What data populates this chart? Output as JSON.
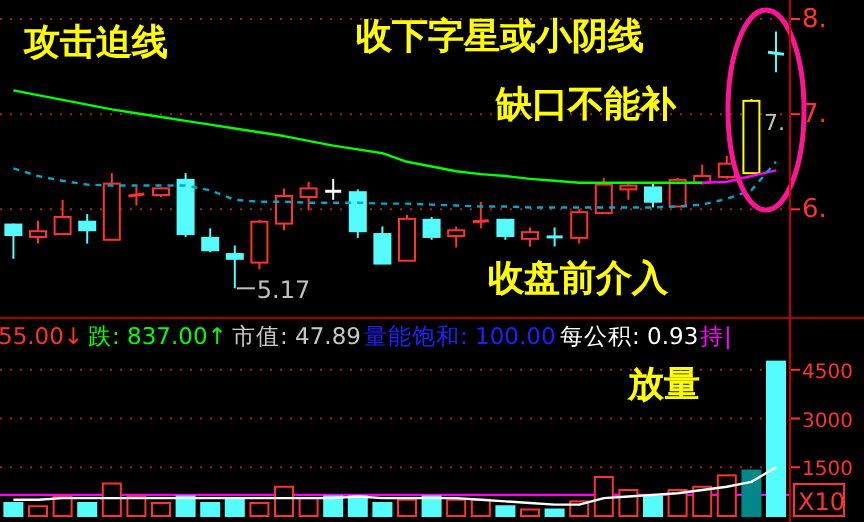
{
  "chart_data": [
    {
      "type": "candlestick",
      "categories": [
        null,
        null,
        null,
        null,
        null,
        null,
        null,
        null,
        null,
        null,
        null,
        null,
        null,
        null,
        null,
        null,
        null,
        null,
        null,
        null,
        null,
        null,
        null,
        null,
        null,
        null,
        null,
        null,
        null,
        null,
        null,
        null
      ],
      "ohlc": [
        [
          5.84,
          5.85,
          5.48,
          5.73
        ],
        [
          5.71,
          5.88,
          5.64,
          5.77
        ],
        [
          5.74,
          6.1,
          5.74,
          5.92
        ],
        [
          5.87,
          5.95,
          5.64,
          5.78
        ],
        [
          5.68,
          6.38,
          5.68,
          6.27
        ],
        [
          6.14,
          6.24,
          6.04,
          6.16
        ],
        [
          6.15,
          6.23,
          6.13,
          6.22
        ],
        [
          6.31,
          6.38,
          5.71,
          5.74
        ],
        [
          5.7,
          5.8,
          5.55,
          5.57
        ],
        [
          5.53,
          5.62,
          5.17,
          5.48
        ],
        [
          5.44,
          5.89,
          5.37,
          5.87
        ],
        [
          5.85,
          6.22,
          5.78,
          6.14
        ],
        [
          6.13,
          6.29,
          5.99,
          6.22
        ],
        [
          6.19,
          6.32,
          6.1,
          6.19
        ],
        [
          6.18,
          6.21,
          5.7,
          5.77
        ],
        [
          5.74,
          5.82,
          5.43,
          5.43
        ],
        [
          5.46,
          5.94,
          5.46,
          5.9
        ],
        [
          5.89,
          5.92,
          5.68,
          5.71
        ],
        [
          5.72,
          5.82,
          5.6,
          5.78
        ],
        [
          5.87,
          6.08,
          5.8,
          5.88
        ],
        [
          5.89,
          5.9,
          5.68,
          5.72
        ],
        [
          5.69,
          5.81,
          5.61,
          5.76
        ],
        [
          5.71,
          5.81,
          5.61,
          5.71
        ],
        [
          5.7,
          6.0,
          5.64,
          5.97
        ],
        [
          5.96,
          6.33,
          5.96,
          6.26
        ],
        [
          6.21,
          6.29,
          6.1,
          6.25
        ],
        [
          6.23,
          6.27,
          6.02,
          6.08
        ],
        [
          6.03,
          6.33,
          6.03,
          6.31
        ],
        [
          6.28,
          6.47,
          6.26,
          6.35
        ],
        [
          6.34,
          6.56,
          6.32,
          6.48
        ],
        [
          6.38,
          7.16,
          6.38,
          7.14
        ],
        [
          7.65,
          7.87,
          7.44,
          7.63
        ]
      ],
      "colors": [
        "#54fcfc",
        "#ff3232",
        "#ff3232",
        "#54fcfc",
        "#ff3232",
        "#ff3232",
        "#ff3232",
        "#54fcfc",
        "#54fcfc",
        "#54fcfc",
        "#ff3232",
        "#ff3232",
        "#ff3232",
        "#ffffff",
        "#54fcfc",
        "#54fcfc",
        "#ff3232",
        "#54fcfc",
        "#ff3232",
        "#ff3232",
        "#54fcfc",
        "#ff3232",
        "#54fcfc",
        "#ff3232",
        "#ff3232",
        "#ff3232",
        "#54fcfc",
        "#ff3232",
        "#ff3232",
        "#ff3232",
        "#ffff00",
        "#54fcfc"
      ],
      "series": [
        {
          "type": "line",
          "color": "#00ff00",
          "line_style": "solid",
          "values": [
            7.25,
            7.2,
            7.15,
            7.1,
            7.05,
            7.01,
            6.97,
            6.93,
            6.89,
            6.85,
            6.81,
            6.77,
            6.72,
            6.67,
            6.63,
            6.59,
            6.5,
            6.45,
            6.4,
            6.37,
            6.35,
            6.32,
            6.3,
            6.28,
            6.28,
            6.28,
            6.28,
            6.28,
            6.28,
            null,
            null,
            null
          ]
        },
        {
          "type": "line",
          "color": "#ff00ff",
          "line_style": "solid",
          "values": [
            null,
            null,
            null,
            null,
            null,
            null,
            null,
            null,
            null,
            null,
            null,
            null,
            null,
            null,
            null,
            null,
            null,
            null,
            null,
            null,
            null,
            null,
            null,
            null,
            null,
            null,
            null,
            null,
            6.28,
            6.29,
            6.35,
            6.41
          ]
        },
        {
          "type": "line",
          "color": "#00a8c8",
          "line_style": "dashed",
          "values": [
            6.43,
            6.35,
            6.3,
            6.26,
            6.25,
            6.25,
            6.25,
            6.25,
            6.2,
            6.1,
            6.08,
            6.08,
            6.07,
            6.07,
            6.07,
            6.06,
            6.06,
            6.05,
            6.04,
            6.03,
            6.03,
            6.02,
            6.02,
            6.02,
            6.02,
            6.02,
            6.02,
            6.03,
            6.05,
            6.11,
            6.2,
            6.5
          ]
        }
      ],
      "ylim": [
        4.9,
        8.2
      ],
      "yticks": [
        {
          "value": 6,
          "label": "6."
        },
        {
          "value": 7,
          "label": "7."
        },
        {
          "value": 8,
          "label": "8."
        }
      ],
      "grid": "y",
      "annotations": [
        "攻击迫线",
        "收下字星或小阴线",
        "缺口不能补",
        "收盘前介入",
        "5.17",
        "7.",
        "55.00↓",
        "跌: 837.00↑",
        "市值: 47.89",
        "量能饱和: 100.00",
        "每公积: 0.93",
        "持|"
      ]
    },
    {
      "type": "bar",
      "categories": [
        null,
        null,
        null,
        null,
        null,
        null,
        null,
        null,
        null,
        null,
        null,
        null,
        null,
        null,
        null,
        null,
        null,
        null,
        null,
        null,
        null,
        null,
        null,
        null,
        null,
        null,
        null,
        null,
        null,
        null,
        null,
        null
      ],
      "values": [
        400,
        300,
        600,
        400,
        1000,
        600,
        400,
        600,
        400,
        550,
        400,
        900,
        550,
        600,
        600,
        400,
        500,
        600,
        500,
        500,
        300,
        200,
        200,
        450,
        1200,
        800,
        600,
        800,
        900,
        1250,
        1400,
        4750
      ],
      "colors": [
        "#54fcfc",
        "#ff3232",
        "#ff3232",
        "#54fcfc",
        "#ff3232",
        "#ff3232",
        "#ff3232",
        "#54fcfc",
        "#54fcfc",
        "#54fcfc",
        "#ff3232",
        "#ff3232",
        "#ff3232",
        "#54fcfc",
        "#54fcfc",
        "#54fcfc",
        "#ff3232",
        "#54fcfc",
        "#ff3232",
        "#ff3232",
        "#54fcfc",
        "#ff3232",
        "#54fcfc",
        "#ff3232",
        "#ff3232",
        "#ff3232",
        "#54fcfc",
        "#ff3232",
        "#ff3232",
        "#ff3232",
        "#008888",
        "#54fcfc"
      ],
      "series": [
        {
          "type": "line",
          "color": "#ffffff",
          "values": [
            500,
            500,
            550,
            550,
            550,
            550,
            550,
            550,
            550,
            550,
            550,
            550,
            550,
            550,
            600,
            550,
            550,
            550,
            550,
            500,
            450,
            400,
            350,
            350,
            550,
            600,
            650,
            700,
            800,
            900,
            1050,
            1500
          ]
        }
      ],
      "ref_lines": [
        {
          "axis": "y",
          "value": 650,
          "color": "#ff00ff"
        }
      ],
      "ylim": [
        0,
        4800
      ],
      "yticks": [
        1500,
        3000,
        4500
      ],
      "grid": "y",
      "annotations": [
        "放量",
        "X10"
      ]
    }
  ]
}
